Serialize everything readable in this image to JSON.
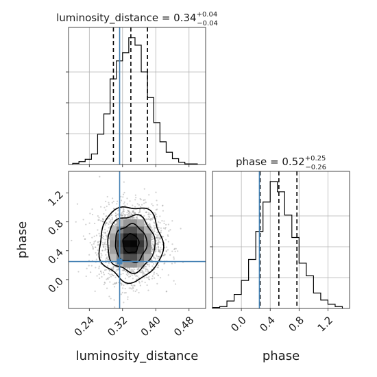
{
  "colors": {
    "truth": "#4682b4",
    "hist": "#000000",
    "grid": "#b0b0b0"
  },
  "chart_data": {
    "type": "corner",
    "parameters": [
      "luminosity_distance",
      "phase"
    ],
    "titles": [
      {
        "param": "luminosity_distance",
        "text": "luminosity_distance = 0.34",
        "sup": "+0.04",
        "sub": "−0.04"
      },
      {
        "param": "phase",
        "text": "phase = 0.52",
        "sup": "+0.25",
        "sub": "−0.26"
      }
    ],
    "xlabel": "luminosity_distance",
    "ylabel": "phase",
    "xlabel2": "phase",
    "truths": {
      "luminosity_distance": 0.313,
      "phase": 0.25
    },
    "quantiles": {
      "luminosity_distance": [
        0.298,
        0.34,
        0.38
      ],
      "phase": [
        0.26,
        0.52,
        0.77
      ]
    },
    "ranges": {
      "luminosity_distance": [
        0.19,
        0.52
      ],
      "phase": [
        -0.4,
        1.5
      ]
    },
    "ticks": {
      "luminosity_distance": [
        0.24,
        0.32,
        0.4,
        0.48
      ],
      "luminosity_distance_labels": [
        "0.24",
        "0.32",
        "0.40",
        "0.48"
      ],
      "phase": [
        0.0,
        0.4,
        0.8,
        1.2
      ],
      "phase_labels": [
        "0.0",
        "0.4",
        "0.8",
        "1.2"
      ]
    },
    "hist_luminosity_distance": {
      "edges": [
        0.2,
        0.215,
        0.23,
        0.245,
        0.26,
        0.275,
        0.29,
        0.305,
        0.32,
        0.335,
        0.35,
        0.365,
        0.38,
        0.395,
        0.41,
        0.425,
        0.44,
        0.455,
        0.47,
        0.485,
        0.5
      ],
      "counts": [
        2,
        5,
        9,
        18,
        52,
        87,
        147,
        178,
        192,
        218,
        205,
        159,
        115,
        72,
        39,
        21,
        10,
        4,
        1,
        1
      ]
    },
    "hist_phase": {
      "edges": [
        -0.4,
        -0.3,
        -0.2,
        -0.1,
        0.0,
        0.1,
        0.2,
        0.3,
        0.4,
        0.5,
        0.6,
        0.7,
        0.8,
        0.9,
        1.0,
        1.1,
        1.2,
        1.3,
        1.4
      ],
      "counts": [
        2,
        4,
        16,
        30,
        60,
        105,
        165,
        228,
        272,
        250,
        200,
        152,
        97,
        70,
        33,
        18,
        9,
        4
      ]
    },
    "density_2d": {
      "center": [
        0.34,
        0.5
      ],
      "sigma": [
        0.038,
        0.26
      ],
      "contour_levels_sigma": [
        0.5,
        1.0,
        1.5,
        2.0
      ]
    }
  }
}
